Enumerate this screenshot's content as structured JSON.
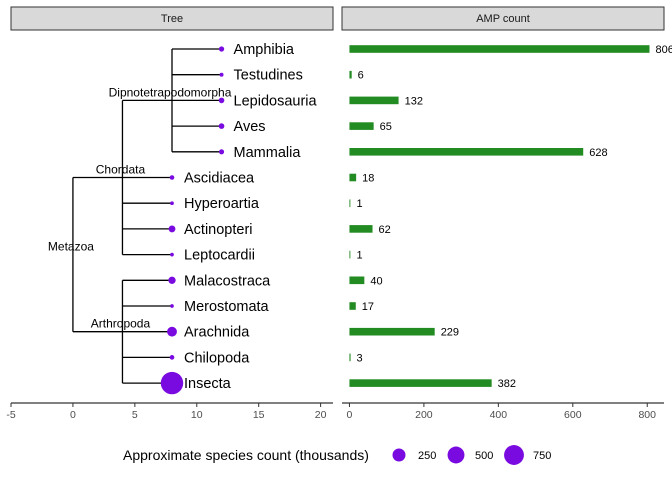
{
  "panels": {
    "tree_title": "Tree",
    "amp_title": "AMP count"
  },
  "point_color": "#7a0be0",
  "bar_color": "#228b22",
  "chart_data": [
    {
      "type": "tree",
      "panel": "Tree",
      "xlim": [
        -5,
        21
      ],
      "xticks": [
        -5,
        0,
        5,
        10,
        15,
        20
      ],
      "nodes": [
        {
          "name": "Metazoa",
          "x": 0,
          "children": [
            "Chordata",
            "Arthropoda"
          ]
        },
        {
          "name": "Chordata",
          "x": 4,
          "children": [
            "Dipnotetrapodomorpha",
            "Ascidiacea",
            "Hyperoartia",
            "Actinopteri",
            "Leptocardii"
          ]
        },
        {
          "name": "Dipnotetrapodomorpha",
          "x": 8,
          "children": [
            "Amphibia",
            "Testudines",
            "Lepidosauria",
            "Aves",
            "Mammalia"
          ]
        },
        {
          "name": "Arthropoda",
          "x": 4,
          "children": [
            "Malacostraca",
            "Merostomata",
            "Arachnida",
            "Chilopoda",
            "Insecta"
          ]
        }
      ],
      "tips": [
        {
          "name": "Amphibia",
          "x": 12,
          "species_thousands": 8
        },
        {
          "name": "Testudines",
          "x": 12,
          "species_thousands": 0.36
        },
        {
          "name": "Lepidosauria",
          "x": 12,
          "species_thousands": 11
        },
        {
          "name": "Aves",
          "x": 12,
          "species_thousands": 11
        },
        {
          "name": "Mammalia",
          "x": 12,
          "species_thousands": 6.5
        },
        {
          "name": "Ascidiacea",
          "x": 8,
          "species_thousands": 3
        },
        {
          "name": "Hyperoartia",
          "x": 8,
          "species_thousands": 0.04
        },
        {
          "name": "Actinopteri",
          "x": 8,
          "species_thousands": 30
        },
        {
          "name": "Leptocardii",
          "x": 8,
          "species_thousands": 0.03
        },
        {
          "name": "Malacostraca",
          "x": 8,
          "species_thousands": 40
        },
        {
          "name": "Merostomata",
          "x": 8,
          "species_thousands": 0.004
        },
        {
          "name": "Arachnida",
          "x": 8,
          "species_thousands": 110
        },
        {
          "name": "Chilopoda",
          "x": 8,
          "species_thousands": 3.3
        },
        {
          "name": "Insecta",
          "x": 8,
          "species_thousands": 1000
        }
      ]
    },
    {
      "type": "bar",
      "panel": "AMP count",
      "orientation": "horizontal",
      "categories": [
        "Amphibia",
        "Testudines",
        "Lepidosauria",
        "Aves",
        "Mammalia",
        "Ascidiacea",
        "Hyperoartia",
        "Actinopteri",
        "Leptocardii",
        "Malacostraca",
        "Merostomata",
        "Arachnida",
        "Chilopoda",
        "Insecta"
      ],
      "values": [
        806,
        6,
        132,
        65,
        628,
        18,
        1,
        62,
        1,
        40,
        17,
        229,
        3,
        382
      ],
      "xlim": [
        -20,
        845
      ],
      "xticks": [
        0,
        200,
        400,
        600,
        800
      ]
    }
  ],
  "legend": {
    "title": "Approximate species count (thousands)",
    "entries": [
      {
        "label": "250",
        "value": 250
      },
      {
        "label": "500",
        "value": 500
      },
      {
        "label": "750",
        "value": 750
      }
    ]
  }
}
